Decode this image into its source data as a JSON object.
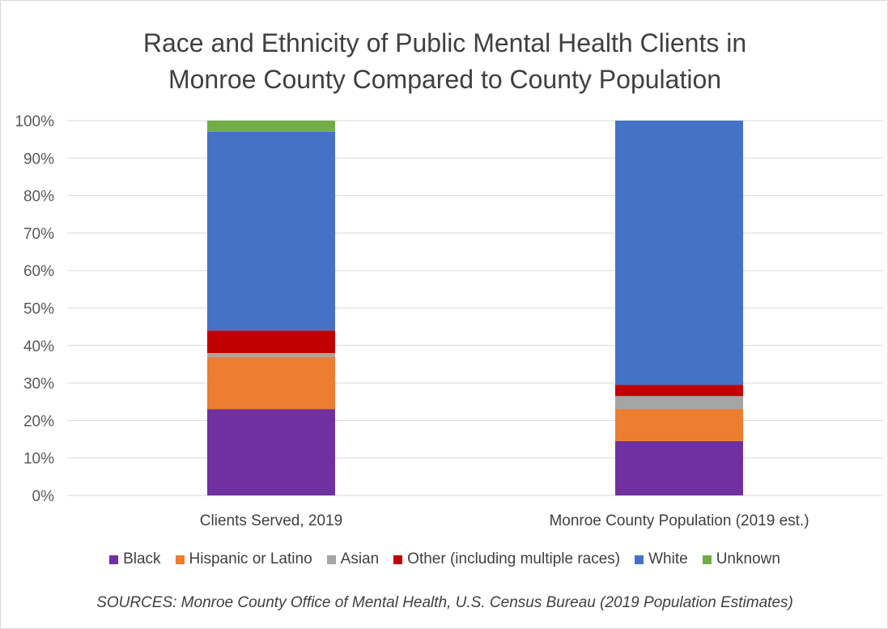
{
  "chart_data": {
    "type": "bar",
    "stacked": true,
    "title_lines": [
      "Race and Ethnicity of Public Mental Health Clients in",
      "Monroe County Compared to County Population"
    ],
    "categories": [
      "Clients Served, 2019",
      "Monroe County Population (2019 est.)"
    ],
    "series": [
      {
        "name": "Black",
        "color": "#7030a0",
        "values": [
          23,
          14.5
        ]
      },
      {
        "name": "Hispanic or Latino",
        "color": "#ed7d31",
        "values": [
          14,
          8.5
        ]
      },
      {
        "name": "Asian",
        "color": "#a5a5a5",
        "values": [
          1,
          3.5
        ]
      },
      {
        "name": "Other (including multiple races)",
        "color": "#c00000",
        "values": [
          6,
          3
        ]
      },
      {
        "name": "White",
        "color": "#4472c4",
        "values": [
          53,
          70.5
        ]
      },
      {
        "name": "Unknown",
        "color": "#70ad47",
        "values": [
          3,
          0
        ]
      }
    ],
    "yticks": [
      "0%",
      "10%",
      "20%",
      "30%",
      "40%",
      "50%",
      "60%",
      "70%",
      "80%",
      "90%",
      "100%"
    ],
    "ylim": [
      0,
      100
    ],
    "grid": true,
    "legend_position": "bottom"
  },
  "sources": "SOURCES: Monroe County Office of Mental Health, U.S. Census Bureau (2019 Population Estimates)"
}
